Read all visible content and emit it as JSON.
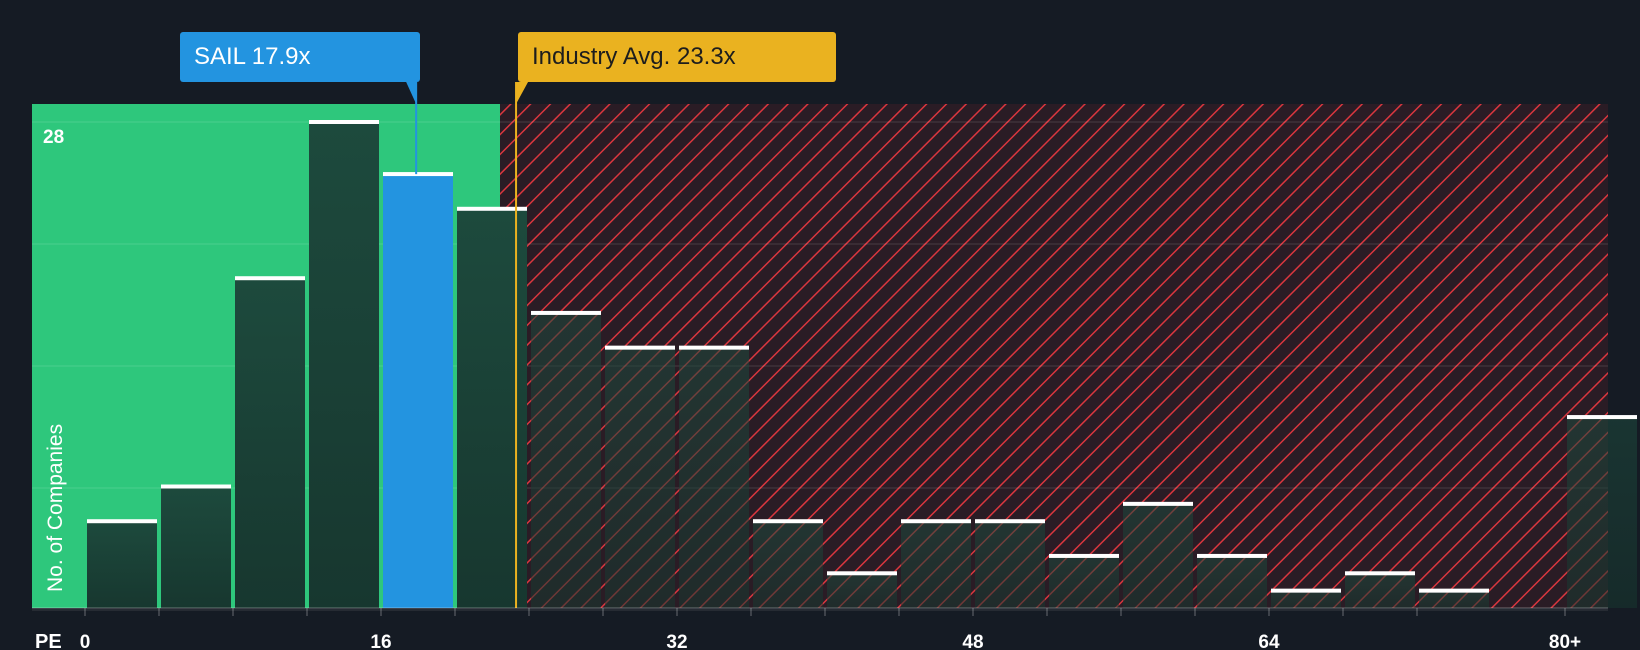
{
  "chart_data": {
    "type": "bar",
    "title": "",
    "xlabel": "PE",
    "ylabel": "No. of Companies",
    "x_tick_labels": [
      "0",
      "16",
      "32",
      "48",
      "64",
      "80+"
    ],
    "y_tick_label": "28",
    "ylim": [
      0,
      28
    ],
    "bin_width": 4,
    "bins": [
      0,
      4,
      8,
      12,
      16,
      20,
      24,
      28,
      32,
      36,
      40,
      44,
      48,
      52,
      56,
      60,
      64,
      68,
      72,
      80
    ],
    "values": [
      5,
      7,
      19,
      28,
      25,
      23,
      17,
      15,
      15,
      5,
      2,
      5,
      5,
      3,
      6,
      3,
      1,
      2,
      1,
      11
    ],
    "highlight_bin_index": 4,
    "company": {
      "label": "SAIL 17.9x",
      "value": 17.9
    },
    "industry_avg": {
      "label": "Industry Avg. 23.3x",
      "value": 23.3
    },
    "colors": {
      "background": "#151b24",
      "fair_zone": "#2ec77c",
      "overvalued_hatch": "#d9363e",
      "bar": "#1c4a3c",
      "bar_highlight": "#2394e0",
      "bar_cap": "#ffffff",
      "company_marker": "#2394e0",
      "industry_marker": "#eab220",
      "axis_text": "#ffffff"
    }
  }
}
